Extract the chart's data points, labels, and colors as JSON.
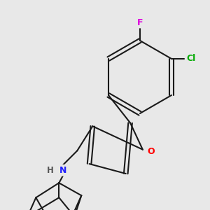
{
  "bg_color": "#e8e8e8",
  "bond_color": "#1a1a1a",
  "bond_width": 1.5,
  "atom_colors": {
    "O": "#ff0000",
    "N": "#2020ff",
    "Cl": "#00aa00",
    "F": "#dd00dd",
    "H": "#555555"
  }
}
